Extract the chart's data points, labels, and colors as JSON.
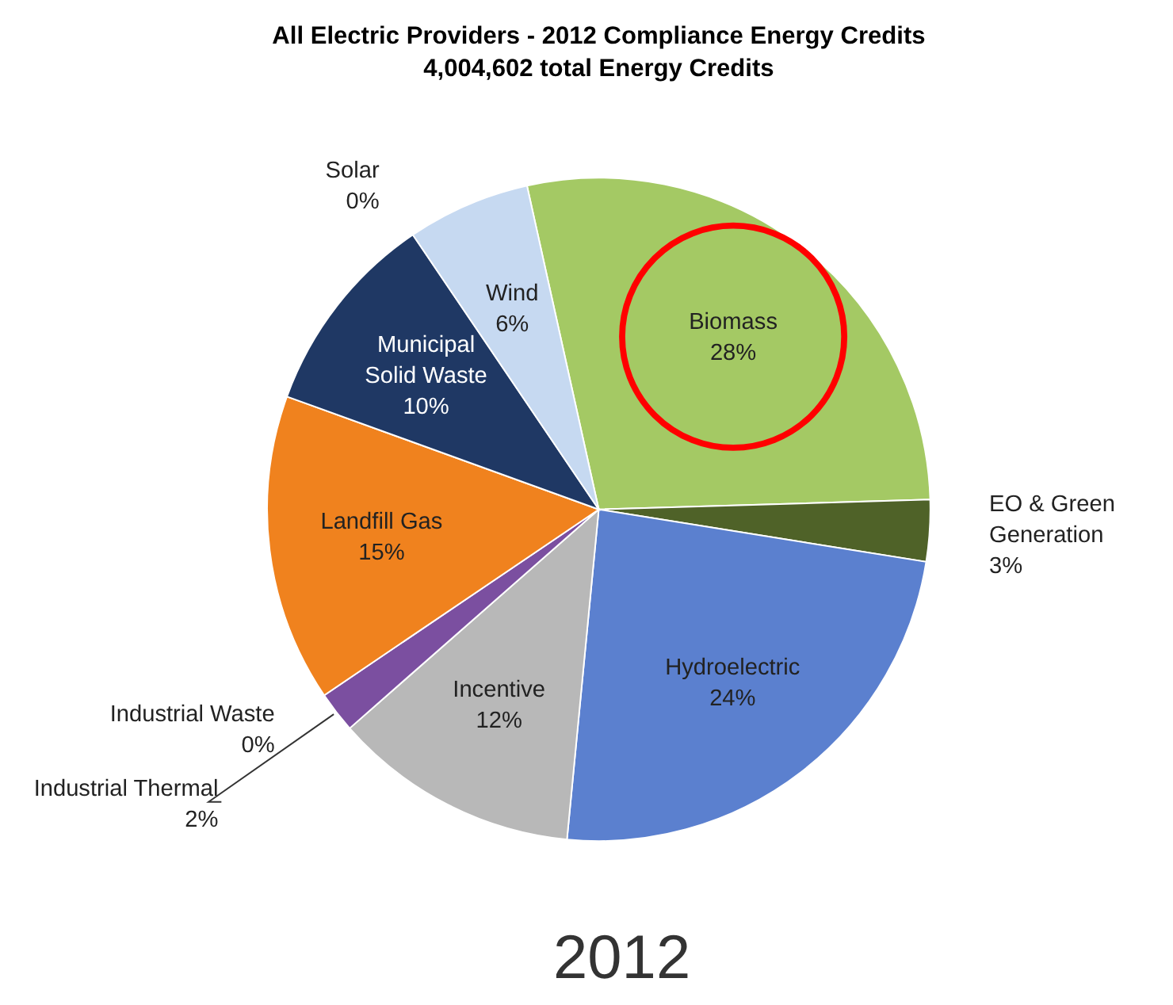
{
  "chart_data": {
    "type": "pie",
    "title": "All Electric Providers - 2012 Compliance Energy Credits",
    "subtitle": "4,004,602 total Energy Credits",
    "categories": [
      "Biomass",
      "EO & Green Generation",
      "Hydroelectric",
      "Incentive",
      "Industrial Thermal",
      "Industrial Waste",
      "Landfill Gas",
      "Municipal Solid Waste",
      "Solar",
      "Wind"
    ],
    "values": [
      28,
      3,
      24,
      12,
      2,
      0,
      15,
      10,
      0,
      6
    ],
    "value_labels": [
      "28%",
      "3%",
      "24%",
      "12%",
      "2%",
      "0%",
      "15%",
      "10%",
      "0%",
      "6%"
    ],
    "colors": [
      "#a4c964",
      "#4f6228",
      "#5b80cf",
      "#b8b8b8",
      "#7b4fa0",
      "#d8d8d8",
      "#f0821e",
      "#1f3864",
      "#c0504d",
      "#c6d9f1"
    ],
    "annotations": [
      "2012"
    ]
  }
}
